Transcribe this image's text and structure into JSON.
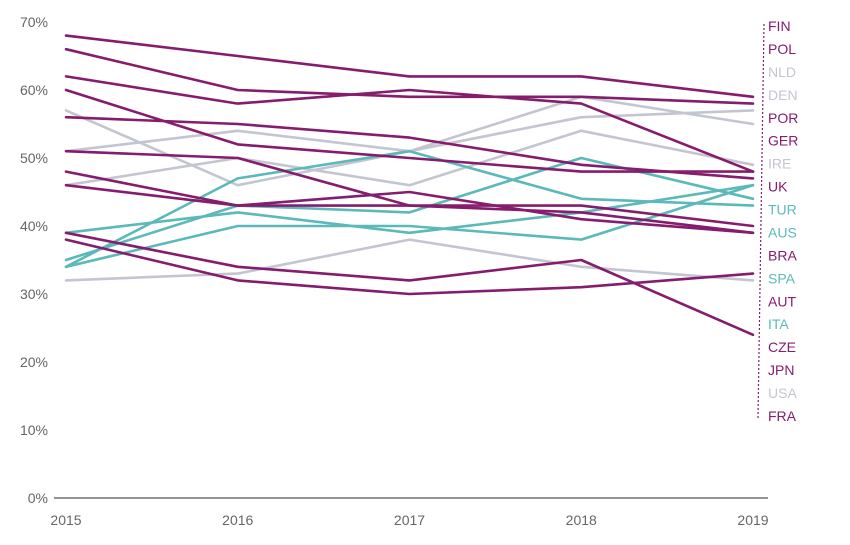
{
  "chart_data": {
    "type": "line",
    "title": "",
    "xlabel": "",
    "ylabel": "",
    "x": [
      "2015",
      "2016",
      "2017",
      "2018",
      "2019"
    ],
    "ylim": [
      0,
      70
    ],
    "yticks": [
      0,
      10,
      20,
      30,
      40,
      50,
      60,
      70
    ],
    "ytick_labels": [
      "0%",
      "10%",
      "20%",
      "30%",
      "40%",
      "50%",
      "60%",
      "70%"
    ],
    "grid": false,
    "legend": "direct labels at right end of each line",
    "colors": {
      "purple": "#851c6e",
      "teal": "#5bb9b9",
      "grey": "#c3c6d1",
      "axis": "#555555",
      "tick": "#666666"
    },
    "series": [
      {
        "name": "FIN",
        "color": "purple",
        "values": [
          68,
          65,
          62,
          62,
          59
        ]
      },
      {
        "name": "POL",
        "color": "purple",
        "values": [
          66,
          60,
          59,
          59,
          58
        ]
      },
      {
        "name": "NLD",
        "color": "grey",
        "values": [
          57,
          46,
          51,
          56,
          57
        ]
      },
      {
        "name": "DEN",
        "color": "grey",
        "values": [
          51,
          54,
          51,
          59,
          55
        ]
      },
      {
        "name": "POR",
        "color": "purple",
        "values": [
          62,
          58,
          60,
          58,
          48
        ]
      },
      {
        "name": "GER",
        "color": "purple",
        "values": [
          60,
          52,
          50,
          48,
          48
        ]
      },
      {
        "name": "IRE",
        "color": "grey",
        "values": [
          46,
          50,
          46,
          54,
          49
        ]
      },
      {
        "name": "UK",
        "color": "purple",
        "values": [
          56,
          55,
          53,
          49,
          47
        ]
      },
      {
        "name": "TUR",
        "color": "teal",
        "values": [
          34,
          47,
          51,
          44,
          43
        ]
      },
      {
        "name": "AUS",
        "color": "teal",
        "values": [
          35,
          43,
          42,
          50,
          44
        ]
      },
      {
        "name": "BRA",
        "color": "purple",
        "values": [
          51,
          50,
          43,
          43,
          40
        ]
      },
      {
        "name": "SPA",
        "color": "teal",
        "values": [
          39,
          42,
          39,
          42,
          46
        ]
      },
      {
        "name": "AUT",
        "color": "purple",
        "values": [
          46,
          43,
          43,
          42,
          39
        ]
      },
      {
        "name": "ITA",
        "color": "teal",
        "values": [
          34,
          40,
          40,
          38,
          46
        ]
      },
      {
        "name": "CZE",
        "color": "purple",
        "values": [
          48,
          43,
          45,
          41,
          39
        ]
      },
      {
        "name": "JPN",
        "color": "purple",
        "values": [
          39,
          34,
          32,
          35,
          24
        ]
      },
      {
        "name": "USA",
        "color": "grey",
        "values": [
          32,
          33,
          38,
          34,
          32
        ]
      },
      {
        "name": "FRA",
        "color": "purple",
        "values": [
          38,
          32,
          30,
          31,
          33
        ]
      }
    ]
  }
}
